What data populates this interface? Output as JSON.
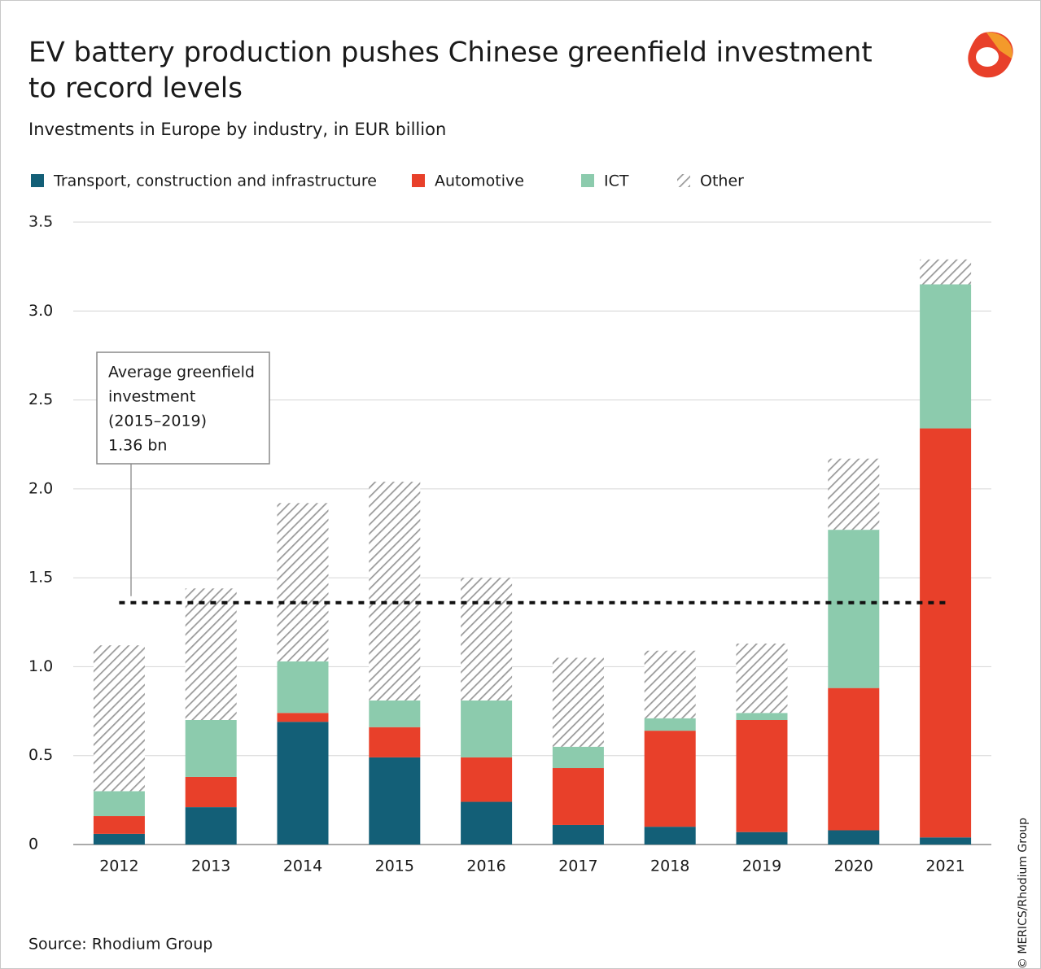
{
  "chart_data": {
    "type": "stacked_bar",
    "title": [
      "EV battery production pushes Chinese greenfield investment",
      "to record levels"
    ],
    "subtitle": "Investments in Europe by industry, in EUR billion",
    "categories": [
      "2012",
      "2013",
      "2014",
      "2015",
      "2016",
      "2017",
      "2018",
      "2019",
      "2020",
      "2021"
    ],
    "series": [
      {
        "name": "Transport, construction and infrastructure",
        "color": "#135f77",
        "values": [
          0.06,
          0.21,
          0.69,
          0.49,
          0.24,
          0.11,
          0.1,
          0.07,
          0.08,
          0.04
        ]
      },
      {
        "name": "Automotive",
        "color": "#e8402a",
        "values": [
          0.1,
          0.17,
          0.05,
          0.17,
          0.25,
          0.32,
          0.54,
          0.63,
          0.8,
          2.3
        ]
      },
      {
        "name": "ICT",
        "color": "#8ccbad",
        "values": [
          0.14,
          0.32,
          0.29,
          0.15,
          0.32,
          0.12,
          0.07,
          0.04,
          0.89,
          0.81
        ]
      },
      {
        "name": "Other",
        "color": "#9a9a9a",
        "pattern": "hatch",
        "values": [
          0.82,
          0.74,
          0.89,
          1.23,
          0.69,
          0.5,
          0.38,
          0.39,
          0.4,
          0.14
        ]
      }
    ],
    "ylim": [
      0,
      3.5
    ],
    "yticks": [
      0,
      0.5,
      {
        "value": 1,
        "label": "1.0"
      },
      1.5,
      {
        "value": 2,
        "label": "2.0"
      },
      2.5,
      {
        "value": 3,
        "label": "3.0"
      },
      3.5
    ],
    "grid": true,
    "legend": "top-left",
    "average": {
      "value": 1.36,
      "label": "1.36 bn",
      "text": [
        "Average greenfield",
        "investment",
        "(2015–2019)"
      ]
    },
    "source": "Source: Rhodium Group",
    "credit": "© MERICS/Rhodium Group"
  }
}
